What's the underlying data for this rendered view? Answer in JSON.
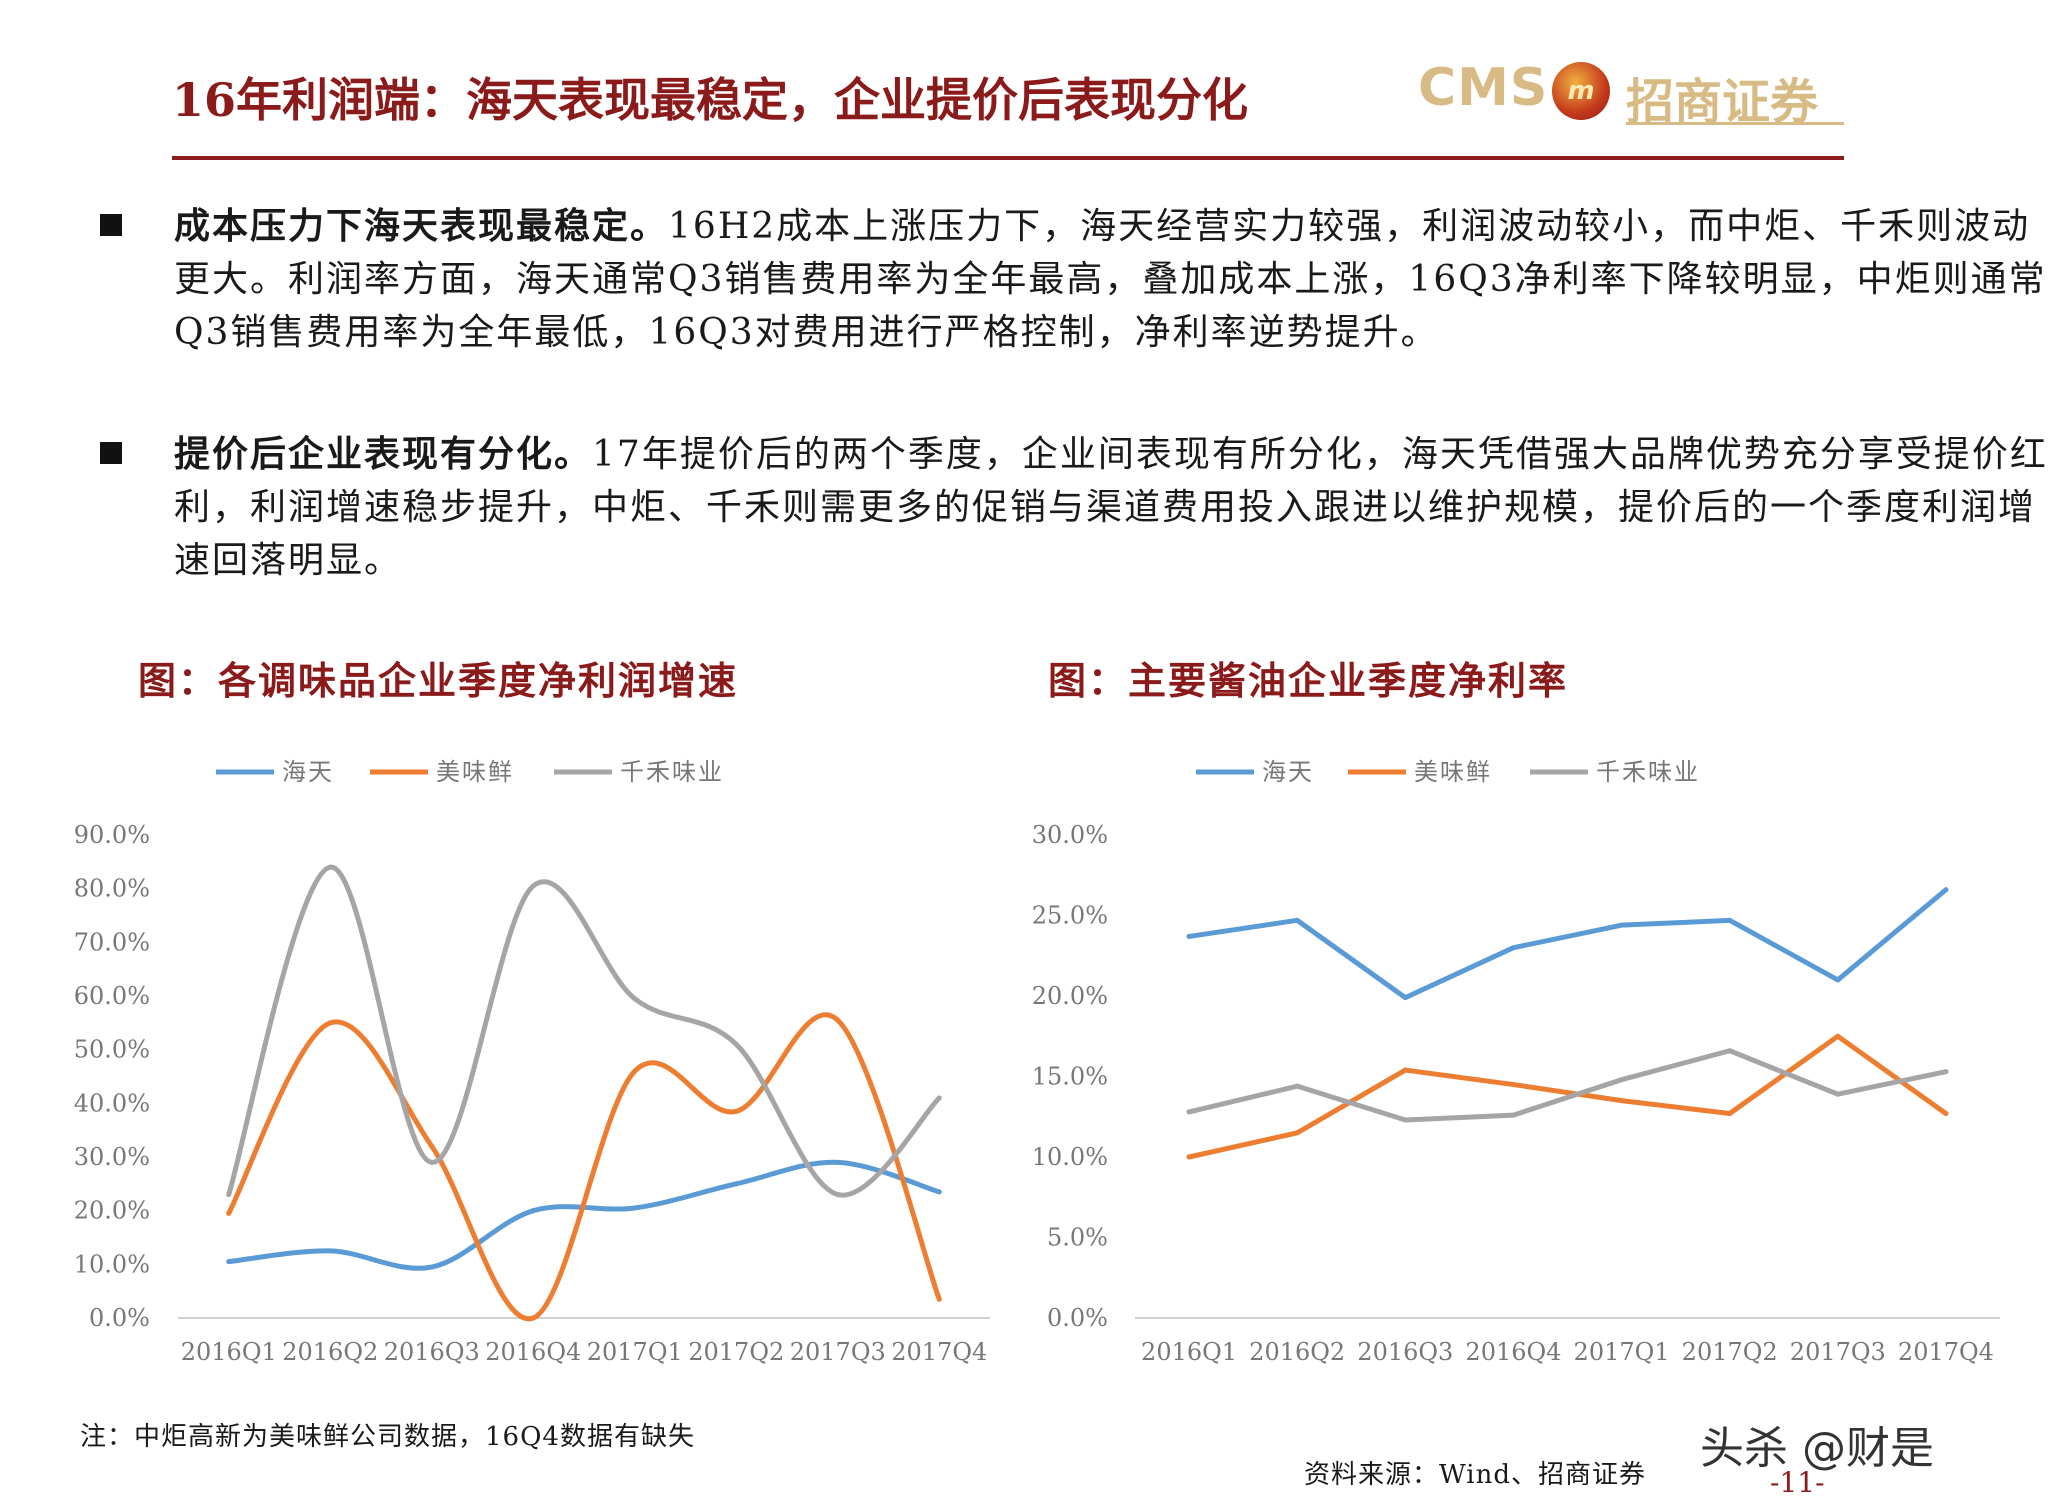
{
  "header": {
    "title": "16年利润端：海天表现最稳定，企业提价后表现分化",
    "logo_cms": "CMS",
    "logo_name": "招商证券"
  },
  "bullets": [
    {
      "lead": "成本压力下海天表现最稳定。",
      "text": "16H2成本上涨压力下，海天经营实力较强，利润波动较小，而中炬、千禾则波动更大。利润率方面，海天通常Q3销售费用率为全年最高，叠加成本上涨，16Q3净利率下降较明显，中炬则通常Q3销售费用率为全年最低，16Q3对费用进行严格控制，净利率逆势提升。"
    },
    {
      "lead": "提价后企业表现有分化。",
      "text": "17年提价后的两个季度，企业间表现有所分化，海天凭借强大品牌优势充分享受提价红利，利润增速稳步提升，中炬、千禾则需更多的促销与渠道费用投入跟进以维护规模，提价后的一个季度利润增速回落明显。"
    }
  ],
  "chart_titles": [
    "图：各调味品企业季度净利润增速",
    "图：主要酱油企业季度净利率"
  ],
  "chart_data": [
    {
      "type": "line",
      "title": "",
      "categories": [
        "2016Q1",
        "2016Q2",
        "2016Q3",
        "2016Q4",
        "2017Q1",
        "2017Q2",
        "2017Q3",
        "2017Q4"
      ],
      "series": [
        {
          "name": "海天",
          "color": "#5b9bd5",
          "values": [
            10.5,
            12.5,
            9.5,
            20.0,
            20.5,
            25.0,
            29.0,
            23.5
          ]
        },
        {
          "name": "美味鲜",
          "color": "#ed7d31",
          "values": [
            19.5,
            55.0,
            32.0,
            0.0,
            46.0,
            38.5,
            55.5,
            3.5
          ]
        },
        {
          "name": "千禾味业",
          "color": "#a5a5a5",
          "values": [
            23.0,
            84.0,
            29.0,
            80.5,
            59.5,
            51.0,
            23.0,
            41.0
          ]
        }
      ],
      "ylim": [
        0,
        90
      ],
      "yticks": [
        "0.0%",
        "10.0%",
        "20.0%",
        "30.0%",
        "40.0%",
        "50.0%",
        "60.0%",
        "70.0%",
        "80.0%",
        "90.0%"
      ],
      "smooth": true,
      "legend": "top",
      "grid": false
    },
    {
      "type": "line",
      "title": "",
      "categories": [
        "2016Q1",
        "2016Q2",
        "2016Q3",
        "2016Q4",
        "2017Q1",
        "2017Q2",
        "2017Q3",
        "2017Q4"
      ],
      "series": [
        {
          "name": "海天",
          "color": "#5b9bd5",
          "values": [
            23.7,
            24.7,
            19.9,
            23.0,
            24.4,
            24.7,
            21.0,
            26.6
          ]
        },
        {
          "name": "美味鲜",
          "color": "#ed7d31",
          "values": [
            10.0,
            11.5,
            15.4,
            14.5,
            13.5,
            12.7,
            17.5,
            12.7
          ]
        },
        {
          "name": "千禾味业",
          "color": "#a5a5a5",
          "values": [
            12.8,
            14.4,
            12.3,
            12.6,
            14.8,
            16.6,
            13.9,
            15.3
          ]
        }
      ],
      "ylim": [
        0,
        30
      ],
      "yticks": [
        "0.0%",
        "5.0%",
        "10.0%",
        "15.0%",
        "20.0%",
        "25.0%",
        "30.0%"
      ],
      "smooth": false,
      "legend": "top",
      "grid": false
    }
  ],
  "footer": {
    "note": "注：中炬高新为美味鲜公司数据，16Q4数据有缺失",
    "source": "资料来源：Wind、招商证券",
    "watermark": "头杀 @财是",
    "page": "-11-"
  }
}
